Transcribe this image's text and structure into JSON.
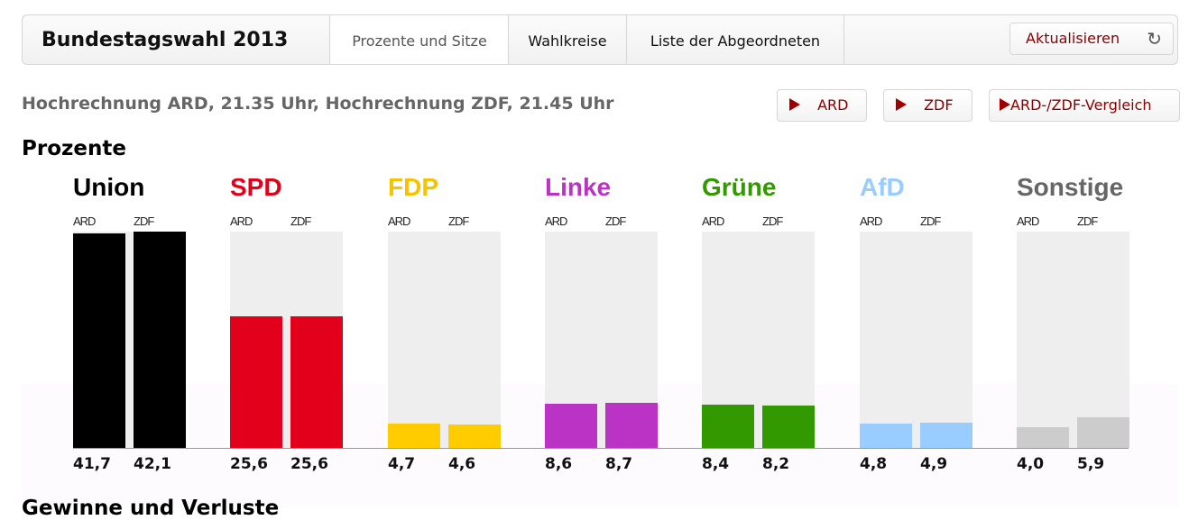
{
  "header": {
    "title": "Bundestagswahl 2013",
    "tabs": [
      {
        "label": "Prozente und Sitze",
        "active": true
      },
      {
        "label": "Wahlkreise",
        "active": false
      },
      {
        "label": "Liste der Abgeordneten",
        "active": false
      }
    ],
    "refresh_label": "Aktualisieren",
    "refresh_icon": "refresh-icon"
  },
  "subtitle": "Hochrechnung ARD, 21.35 Uhr, Hochrechnung ZDF, 21.45 Uhr",
  "buttons": [
    {
      "label": "ARD",
      "icon": "play-icon"
    },
    {
      "label": "ZDF",
      "icon": "play-icon"
    },
    {
      "label": "ARD-/ZDF-Vergleich",
      "icon": "play-icon"
    }
  ],
  "section_title": "Prozente",
  "next_section_title": "Gewinne und Verluste",
  "chart_data": {
    "type": "bar",
    "title": "Prozente",
    "categories": [
      "Union",
      "SPD",
      "FDP",
      "Linke",
      "Grüne",
      "AfD",
      "Sonstige"
    ],
    "series": [
      {
        "name": "ARD",
        "values": [
          41.7,
          25.6,
          4.7,
          8.6,
          8.4,
          4.8,
          4.0
        ],
        "labels": [
          "41,7",
          "25,6",
          "4,7",
          "8,6",
          "8,4",
          "4,8",
          "4,0"
        ]
      },
      {
        "name": "ZDF",
        "values": [
          42.1,
          25.6,
          4.6,
          8.7,
          8.2,
          4.9,
          5.9
        ],
        "labels": [
          "42,1",
          "25,6",
          "4,6",
          "8,7",
          "8,2",
          "4,9",
          "5,9"
        ]
      }
    ],
    "colors": [
      "#000000",
      "#e2001a",
      "#ffcc00",
      "#bb33c4",
      "#339900",
      "#99ccff",
      "#cccccc"
    ],
    "label_colors": [
      "#000000",
      "#e2001a",
      "#f5c400",
      "#bb33c4",
      "#339900",
      "#99ccff",
      "#666666"
    ],
    "ylim": [
      0,
      42
    ]
  }
}
